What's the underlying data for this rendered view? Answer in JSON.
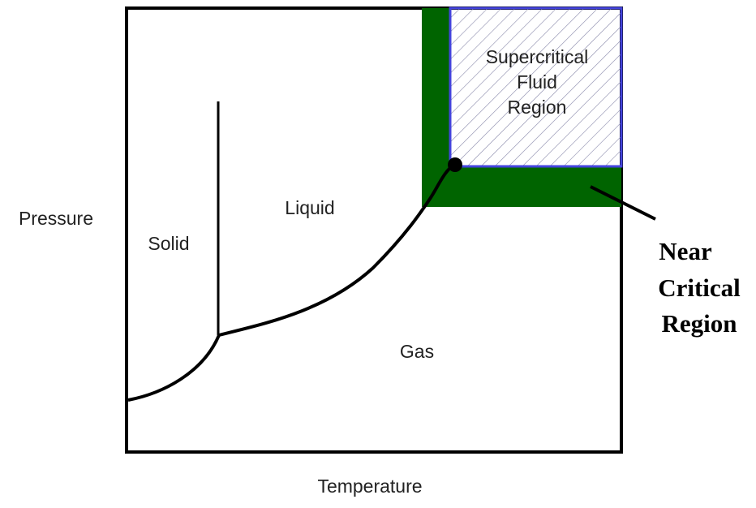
{
  "axes": {
    "x_label": "Temperature",
    "y_label": "Pressure"
  },
  "regions": {
    "solid": "Solid",
    "liquid": "Liquid",
    "gas": "Gas",
    "supercritical": [
      "Supercritical",
      "Fluid",
      "Region"
    ]
  },
  "callout": [
    "Near",
    "Critical",
    "Region"
  ]
}
